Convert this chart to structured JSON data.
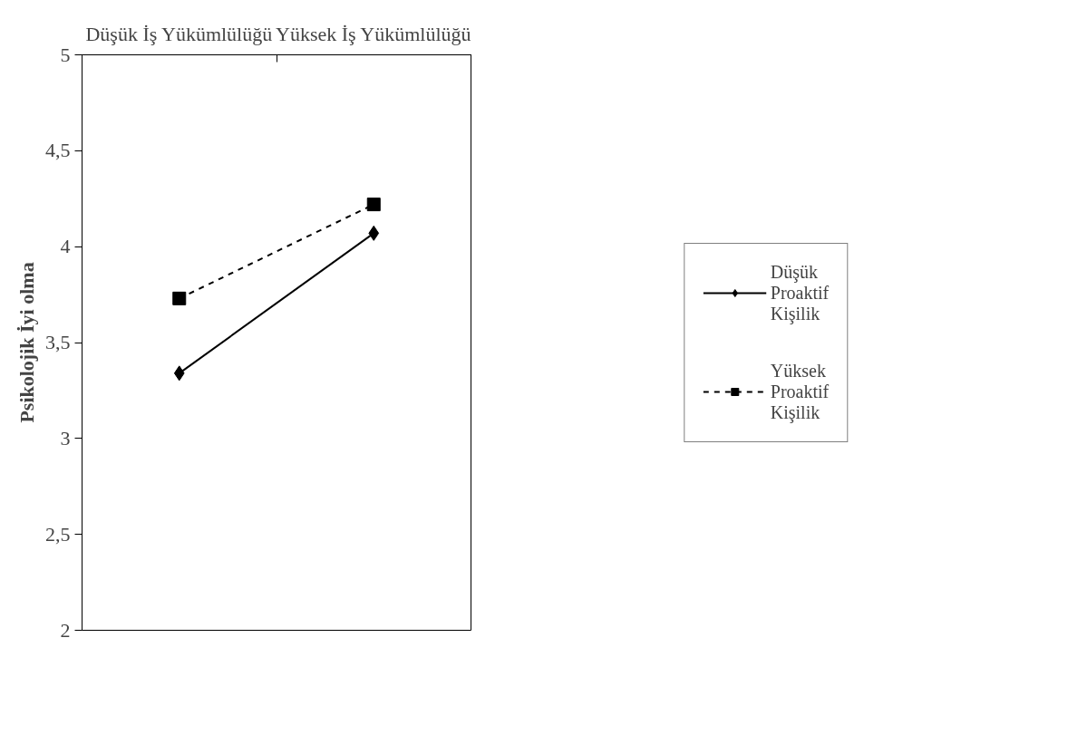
{
  "chart_data": {
    "type": "line",
    "ylabel": "Psikolojik İyi olma",
    "categories": [
      "Düşük İş Yükümlülüğü",
      "Yüksek İş Yükümlülüğü"
    ],
    "series": [
      {
        "name": "Düşük Proaktif Kişilik",
        "color": "#000000",
        "values": [
          3.34,
          4.07
        ],
        "marker": "diamond",
        "line_style": "solid"
      },
      {
        "name": "Yüksek Proaktif Kişilik",
        "color": "#000000",
        "values": [
          3.73,
          4.22
        ],
        "marker": "square",
        "line_style": "dashed"
      }
    ],
    "ylim": [
      2,
      5
    ],
    "yticks": [
      2,
      {
        "value": 2.5,
        "label": "2,5"
      },
      3,
      {
        "value": 3.5,
        "label": "3,5"
      },
      4,
      {
        "value": 4.5,
        "label": "4,5"
      },
      5
    ],
    "grid": false,
    "legend": "right"
  }
}
